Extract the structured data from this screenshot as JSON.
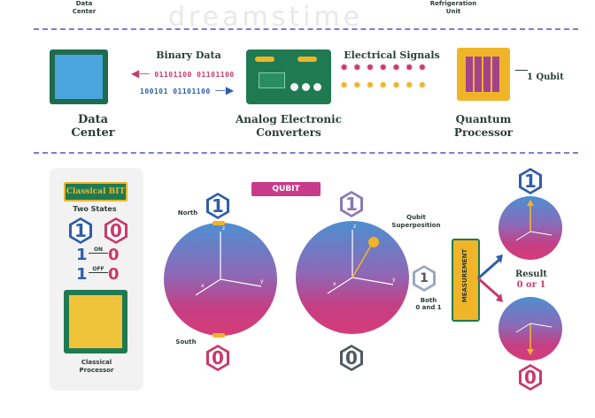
{
  "header": {
    "top_left": "Data\nCenter",
    "top_right": "Refrigeration\nUnit",
    "watermark": "dreamstime"
  },
  "pipeline": {
    "data_center_label": "Data\nCenter",
    "binary_data_label": "Binary Data",
    "binary_line_1": "01101100 01101100",
    "binary_line_2": "100101 01101100",
    "converters_label": "Analog Electronic\nConverters",
    "electrical_label": "Electrical Signals",
    "processor_label": "Quantum\nProcessor",
    "qubit_callout": "1 Qubit"
  },
  "classical": {
    "title": "Classical BIT",
    "two_states": "Two States",
    "state_one": "1",
    "state_zero": "0",
    "on_label": "ON",
    "off_label": "OFF",
    "processor_label": "Classical\nProcessor"
  },
  "qubit": {
    "title": "QUBIT",
    "north": "North",
    "south": "South",
    "superposition": "Qubit\nSuperposition",
    "both": "Both\n0 and 1",
    "measurement": "MEASUREMENT",
    "result": "Result",
    "result_values": "0 or 1",
    "one": "1",
    "zero": "0",
    "axis_x": "x",
    "axis_y": "y",
    "axis_z": "z"
  },
  "colors": {
    "blue": "#2f5ea8",
    "magenta": "#c93a6a",
    "dark": "#2b3e39",
    "green_board": "#1f7a52",
    "gold": "#f0b429",
    "dash": "#7b7fd0"
  }
}
